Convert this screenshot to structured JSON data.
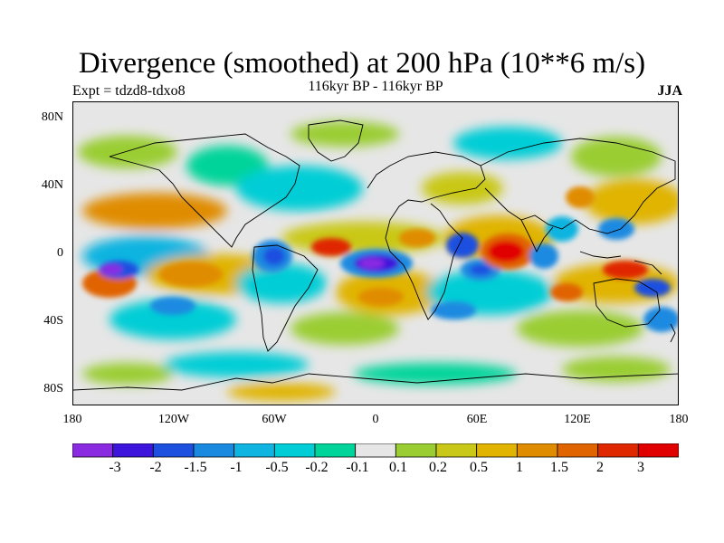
{
  "title": "Divergence (smoothed) at 200 hPa (10**6 m/s)",
  "subtitle": "116kyr BP - 116kyr BP",
  "experiment": "Expt = tdzd8-tdxo8",
  "season": "JJA",
  "lat_ticks": [
    "80N",
    "40N",
    "0",
    "40S",
    "80S"
  ],
  "lon_ticks": [
    "180",
    "120W",
    "60W",
    "0",
    "60E",
    "120E",
    "180"
  ],
  "colorbar": {
    "labels": [
      "-3",
      "-2",
      "-1.5",
      "-1",
      "-0.5",
      "-0.2",
      "-0.1",
      "0.1",
      "0.2",
      "0.5",
      "1",
      "1.5",
      "2",
      "3"
    ],
    "colors": [
      "#8a2be2",
      "#3c14dc",
      "#1e50e0",
      "#1a8ae0",
      "#10b4e0",
      "#00cdd6",
      "#00d49a",
      "#e6e6e6",
      "#9acd32",
      "#c9c818",
      "#e0b400",
      "#e08c00",
      "#e06400",
      "#e02800",
      "#e00000"
    ]
  },
  "map_colors": {
    "ocean_bg": "#e6e6e6",
    "coast": "#000000"
  }
}
